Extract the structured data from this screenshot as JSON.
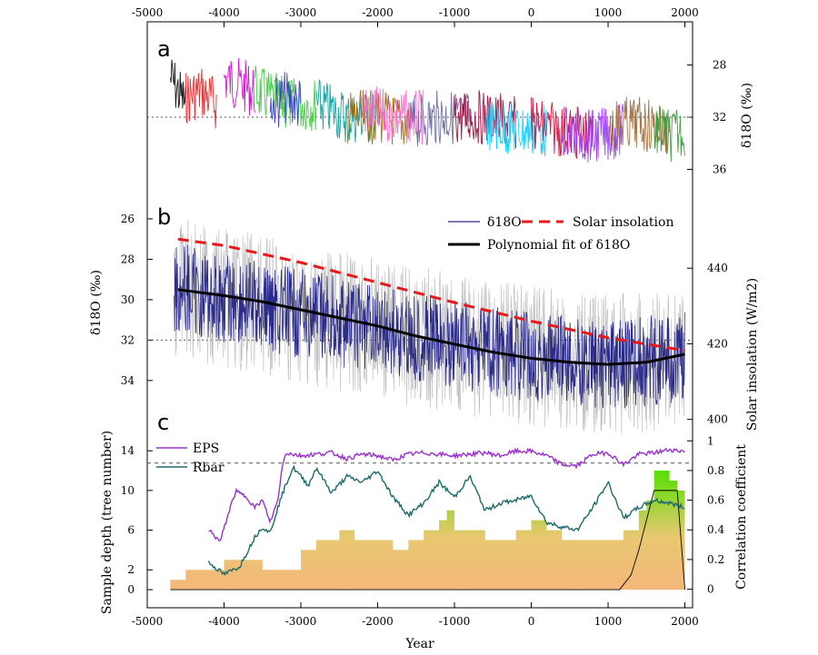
{
  "chart_data": [
    {
      "panel": "a",
      "type": "line",
      "x_axis_top": {
        "ticks": [
          -5000,
          -4000,
          -3000,
          -2000,
          -1000,
          0,
          1000,
          2000
        ],
        "range": [
          -5000,
          2100
        ]
      },
      "y_axis_right": {
        "label": "δ18O (‰)",
        "ticks": [
          28,
          32,
          36
        ],
        "range": [
          25.8,
          38.2
        ],
        "reversed": true
      },
      "reference_line_y": 32,
      "series": [
        {
          "color": "#000000",
          "x": [
            -4700,
            -4600,
            -4500
          ],
          "y": [
            29,
            30,
            31
          ]
        },
        {
          "color": "#e31a1c",
          "x": [
            -4500,
            -4300,
            -4100
          ],
          "y": [
            30.5,
            30,
            31
          ]
        },
        {
          "color": "#cc00cc",
          "x": [
            -4000,
            -3800,
            -3600
          ],
          "y": [
            29,
            29.5,
            30
          ]
        },
        {
          "color": "#33cc33",
          "x": [
            -3600,
            -3200,
            -2800
          ],
          "y": [
            30,
            31,
            31
          ]
        },
        {
          "color": "#3333cc",
          "x": [
            -3400,
            -3200,
            -3000
          ],
          "y": [
            31,
            30.5,
            31
          ]
        },
        {
          "color": "#009999",
          "x": [
            -2800,
            -2400,
            -2000
          ],
          "y": [
            31,
            32,
            32
          ]
        },
        {
          "color": "#996600",
          "x": [
            -2400,
            -2000,
            -1600
          ],
          "y": [
            32,
            32,
            32.5
          ]
        },
        {
          "color": "#ff66cc",
          "x": [
            -2200,
            -1800,
            -1400
          ],
          "y": [
            31.5,
            32,
            32
          ]
        },
        {
          "color": "#666699",
          "x": [
            -1600,
            -1200,
            -800
          ],
          "y": [
            32.5,
            32,
            32
          ]
        },
        {
          "color": "#990033",
          "x": [
            -1000,
            -600,
            -200
          ],
          "y": [
            32,
            32,
            32.5
          ]
        },
        {
          "color": "#00ccff",
          "x": [
            -600,
            -200,
            200
          ],
          "y": [
            32.5,
            33,
            33
          ]
        },
        {
          "color": "#cc0033",
          "x": [
            0,
            400,
            800
          ],
          "y": [
            32.5,
            33,
            33.5
          ]
        },
        {
          "color": "#9933ff",
          "x": [
            400,
            800,
            1200
          ],
          "y": [
            33,
            33.5,
            33
          ]
        },
        {
          "color": "#996633",
          "x": [
            1000,
            1400,
            1800
          ],
          "y": [
            32.5,
            32.5,
            33
          ]
        },
        {
          "color": "#339933",
          "x": [
            1600,
            1800,
            2000
          ],
          "y": [
            33,
            33.5,
            33
          ]
        }
      ]
    },
    {
      "panel": "b",
      "type": "line",
      "y_axis_left": {
        "label": "δ18O (‰)",
        "ticks": [
          26,
          28,
          30,
          32,
          34
        ],
        "range": [
          24.7,
          36.3
        ],
        "reversed": true
      },
      "y_axis_right": {
        "label": "Solar insolation (W/m2)",
        "ticks": [
          400,
          420,
          440
        ],
        "range": [
          398,
          460
        ]
      },
      "reference_line_y": 32,
      "legend": [
        "δ18O",
        "Solar insolation",
        "Polynomial fit of δ18O"
      ],
      "series": [
        {
          "name": "δ18O",
          "color": "#2b2b8c",
          "axis": "left",
          "x": [
            -4600,
            -4200,
            -3800,
            -3400,
            -3000,
            -2600,
            -2200,
            -1800,
            -1400,
            -1000,
            -600,
            -200,
            200,
            600,
            1000,
            1400,
            1800,
            2000
          ],
          "y": [
            29.4,
            29.8,
            30.1,
            30.4,
            30.7,
            31.0,
            31.3,
            31.6,
            31.9,
            32.2,
            32.5,
            32.7,
            32.9,
            33.1,
            33.2,
            33.1,
            32.9,
            32.7
          ]
        },
        {
          "name": "Solar insolation",
          "color": "#e8191b",
          "axis": "right",
          "dashed": true,
          "x": [
            -4600,
            -4000,
            -3000,
            -2000,
            -1000,
            0,
            1000,
            2000
          ],
          "y": [
            447.7,
            446.0,
            441.5,
            436.2,
            430.9,
            426.0,
            421.6,
            418.2
          ]
        },
        {
          "name": "Polynomial fit of δ18O",
          "color": "#000000",
          "axis": "left",
          "x": [
            -4600,
            -4000,
            -3500,
            -3000,
            -2500,
            -2000,
            -1500,
            -1000,
            -500,
            0,
            500,
            1000,
            1500,
            2000
          ],
          "y": [
            29.5,
            29.8,
            30.1,
            30.5,
            30.9,
            31.3,
            31.8,
            32.2,
            32.6,
            32.9,
            33.1,
            33.2,
            33.1,
            32.7
          ]
        }
      ]
    },
    {
      "panel": "c",
      "type": "area",
      "x_axis_bottom": {
        "label": "Year",
        "ticks": [
          -5000,
          -4000,
          -3000,
          -2000,
          -1000,
          0,
          1000,
          2000
        ],
        "range": [
          -5000,
          2100
        ]
      },
      "y_axis_left": {
        "label": "Sample depth (tree number)",
        "ticks": [
          0,
          2,
          6,
          10,
          14
        ],
        "range": [
          -1,
          15.3
        ]
      },
      "y_axis_right": {
        "label": "Correlation coefficient",
        "ticks": [
          0,
          0.2,
          0.4,
          0.6,
          0.8,
          1
        ],
        "range": [
          -0.07,
          1.02
        ]
      },
      "reference_line_y_right": 0.85,
      "legend": [
        "EPS",
        "Rbar"
      ],
      "sample_depth": {
        "x": [
          -4700,
          -4500,
          -4300,
          -4000,
          -3800,
          -3500,
          -3300,
          -3000,
          -2800,
          -2500,
          -2300,
          -2000,
          -1800,
          -1600,
          -1400,
          -1200,
          -1100,
          -1000,
          -800,
          -600,
          -400,
          -200,
          0,
          200,
          400,
          600,
          800,
          1000,
          1200,
          1400,
          1500,
          1600,
          1700,
          1800,
          1900,
          2000
        ],
        "y": [
          1,
          2,
          2,
          3,
          3,
          2,
          2,
          4,
          5,
          6,
          5,
          5,
          4,
          5,
          6,
          7,
          8,
          6,
          6,
          5,
          5,
          6,
          7,
          6,
          5,
          5,
          5,
          5,
          6,
          8,
          9,
          12,
          12,
          11,
          10,
          6
        ]
      },
      "series": [
        {
          "name": "EPS",
          "color": "#9933cc",
          "x": [
            -4200,
            -4050,
            -3950,
            -3850,
            -3700,
            -3600,
            -3500,
            -3400,
            -3300,
            -3250,
            -3200,
            -3000,
            -2800,
            -2600,
            -2400,
            -2200,
            -2000,
            -1800,
            -1600,
            -1400,
            -1200,
            -1000,
            -800,
            -600,
            -400,
            -200,
            0,
            200,
            400,
            600,
            800,
            1000,
            1200,
            1400,
            1600,
            1800,
            2000
          ],
          "y": [
            0.4,
            0.32,
            0.5,
            0.66,
            0.62,
            0.55,
            0.6,
            0.45,
            0.6,
            0.8,
            0.92,
            0.9,
            0.91,
            0.92,
            0.88,
            0.91,
            0.9,
            0.87,
            0.91,
            0.92,
            0.91,
            0.9,
            0.91,
            0.92,
            0.9,
            0.93,
            0.93,
            0.9,
            0.84,
            0.83,
            0.91,
            0.92,
            0.84,
            0.91,
            0.92,
            0.94,
            0.93
          ]
        },
        {
          "name": "Rbar",
          "color": "#1f6b6b",
          "x": [
            -4200,
            -4000,
            -3800,
            -3600,
            -3500,
            -3400,
            -3300,
            -3200,
            -3100,
            -3000,
            -2900,
            -2800,
            -2600,
            -2400,
            -2200,
            -2000,
            -1800,
            -1600,
            -1400,
            -1200,
            -1000,
            -800,
            -600,
            -400,
            -200,
            0,
            200,
            400,
            600,
            800,
            1000,
            1200,
            1400,
            1600,
            1800,
            2000
          ],
          "y": [
            0.18,
            0.1,
            0.15,
            0.35,
            0.42,
            0.38,
            0.55,
            0.7,
            0.82,
            0.76,
            0.7,
            0.82,
            0.65,
            0.76,
            0.72,
            0.8,
            0.62,
            0.5,
            0.58,
            0.72,
            0.62,
            0.76,
            0.53,
            0.58,
            0.6,
            0.63,
            0.45,
            0.42,
            0.4,
            0.55,
            0.72,
            0.48,
            0.55,
            0.6,
            0.58,
            0.55
          ]
        }
      ]
    }
  ],
  "labels": {
    "panel_a": "a",
    "panel_b": "b",
    "panel_c": "c",
    "xlabel": "Year",
    "panel_a_right_axis": "δ18O (‰)",
    "panel_b_left_axis": "δ18O (‰)",
    "panel_b_right_axis": "Solar insolation (W/m2)",
    "panel_c_left_axis": "Sample depth (tree number)",
    "panel_c_right_axis": "Correlation coefficient",
    "legend_d18o": "δ18O",
    "legend_solar": "Solar insolation",
    "legend_poly": "Polynomial fit of δ18O",
    "legend_eps": "EPS",
    "legend_rbar": "Rbar"
  }
}
